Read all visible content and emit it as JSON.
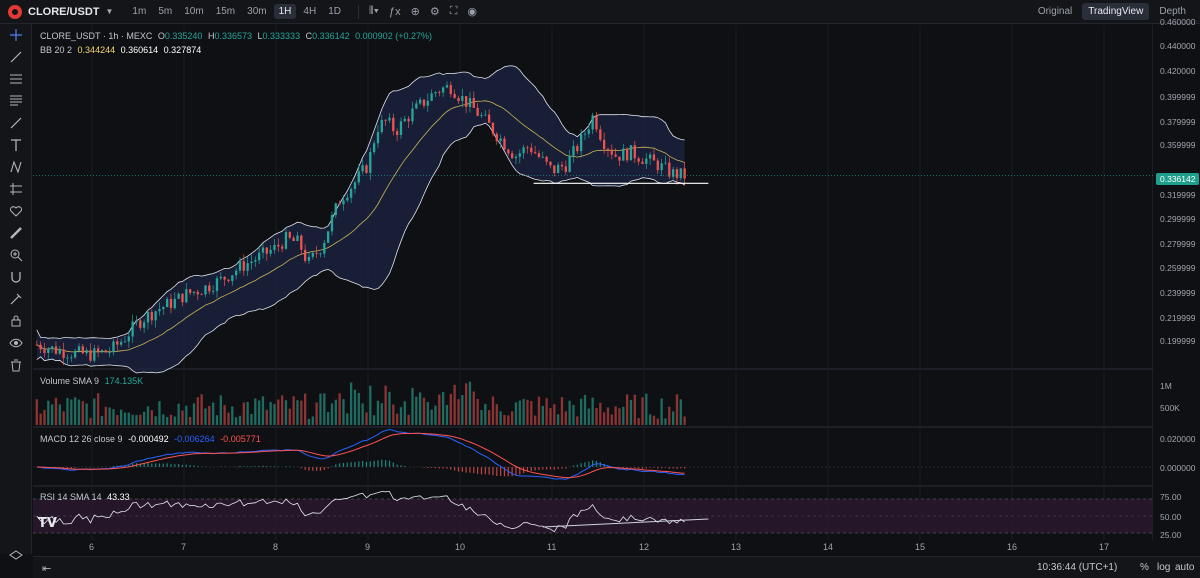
{
  "header": {
    "symbol": "CLORE/USDT",
    "timeframes": [
      "1m",
      "5m",
      "10m",
      "15m",
      "30m",
      "1H",
      "4H",
      "1D"
    ],
    "active_timeframe": "1H",
    "view_modes": [
      "Original",
      "TradingView",
      "Depth"
    ],
    "active_view": "TradingView"
  },
  "legend": {
    "title": "CLORE_USDT · 1h · MEXC",
    "open_label": "O",
    "open": "0.335240",
    "high_label": "H",
    "high": "0.336573",
    "low_label": "L",
    "low": "0.333333",
    "close_label": "C",
    "close": "0.336142",
    "change": "0.000902 (+0.27%)",
    "bb_label": "BB 20 2",
    "bb_values": [
      "0.344244",
      "0.360614",
      "0.327874"
    ]
  },
  "volume_legend": {
    "label": "Volume SMA 9",
    "value": "174.135K"
  },
  "macd_legend": {
    "label": "MACD 12 26 close 9",
    "values": [
      "-0.000492",
      "-0.006264",
      "-0.005771"
    ]
  },
  "rsi_legend": {
    "label": "RSI 14 SMA 14",
    "value": "43.33"
  },
  "price_axis": [
    "0.460000",
    "0.440000",
    "0.420000",
    "0.399999",
    "0.379999",
    "0.359999",
    "0.319999",
    "0.299999",
    "0.279999",
    "0.259999",
    "0.239999",
    "0.219999",
    "0.199999"
  ],
  "last_price": "0.336142",
  "volume_axis": [
    "1M",
    "500K"
  ],
  "macd_axis": [
    "0.020000",
    "0.000000"
  ],
  "rsi_axis": [
    "75.00",
    "50.00",
    "25.00"
  ],
  "time_axis": [
    "6",
    "7",
    "8",
    "9",
    "10",
    "11",
    "12",
    "13",
    "14",
    "15",
    "16",
    "17"
  ],
  "footer": {
    "clock": "10:36:44 (UTC+1)",
    "percent": "%",
    "log": "log",
    "auto": "auto"
  },
  "colors": {
    "up": "#26a69a",
    "down": "#ef5350",
    "bb_fill": "#1c2340",
    "macd_line": "#2962ff",
    "signal_line": "#ff5252"
  },
  "chart_data": {
    "type": "candlestick",
    "price_range": [
      0.19,
      0.46
    ],
    "hours_per_day": 24,
    "first_day": 6,
    "days_shown": [
      6,
      7,
      8,
      9,
      10,
      11,
      12,
      13,
      14,
      15,
      16,
      17
    ],
    "close_path": [
      [
        5.4,
        0.2
      ],
      [
        5.6,
        0.196
      ],
      [
        5.8,
        0.193
      ],
      [
        6.0,
        0.192
      ],
      [
        6.2,
        0.195
      ],
      [
        6.35,
        0.205
      ],
      [
        6.5,
        0.218
      ],
      [
        6.7,
        0.228
      ],
      [
        6.9,
        0.235
      ],
      [
        7.0,
        0.24
      ],
      [
        7.2,
        0.245
      ],
      [
        7.4,
        0.252
      ],
      [
        7.6,
        0.262
      ],
      [
        7.8,
        0.27
      ],
      [
        8.0,
        0.278
      ],
      [
        8.1,
        0.285
      ],
      [
        8.25,
        0.282
      ],
      [
        8.35,
        0.265
      ],
      [
        8.5,
        0.28
      ],
      [
        8.6,
        0.3
      ],
      [
        8.7,
        0.318
      ],
      [
        8.85,
        0.33
      ],
      [
        9.0,
        0.345
      ],
      [
        9.1,
        0.375
      ],
      [
        9.2,
        0.38
      ],
      [
        9.3,
        0.372
      ],
      [
        9.45,
        0.385
      ],
      [
        9.6,
        0.395
      ],
      [
        9.75,
        0.405
      ],
      [
        9.9,
        0.408
      ],
      [
        10.0,
        0.4
      ],
      [
        10.15,
        0.39
      ],
      [
        10.3,
        0.378
      ],
      [
        10.45,
        0.365
      ],
      [
        10.6,
        0.352
      ],
      [
        10.75,
        0.36
      ],
      [
        10.9,
        0.348
      ],
      [
        11.0,
        0.34
      ],
      [
        11.15,
        0.345
      ],
      [
        11.3,
        0.362
      ],
      [
        11.45,
        0.385
      ],
      [
        11.55,
        0.365
      ],
      [
        11.7,
        0.352
      ],
      [
        11.85,
        0.355
      ],
      [
        12.0,
        0.35
      ],
      [
        12.15,
        0.345
      ],
      [
        12.3,
        0.338
      ],
      [
        12.45,
        0.336
      ]
    ],
    "support_line": {
      "price": 0.33,
      "from_day": 10.8,
      "to_day": 12.7
    }
  }
}
